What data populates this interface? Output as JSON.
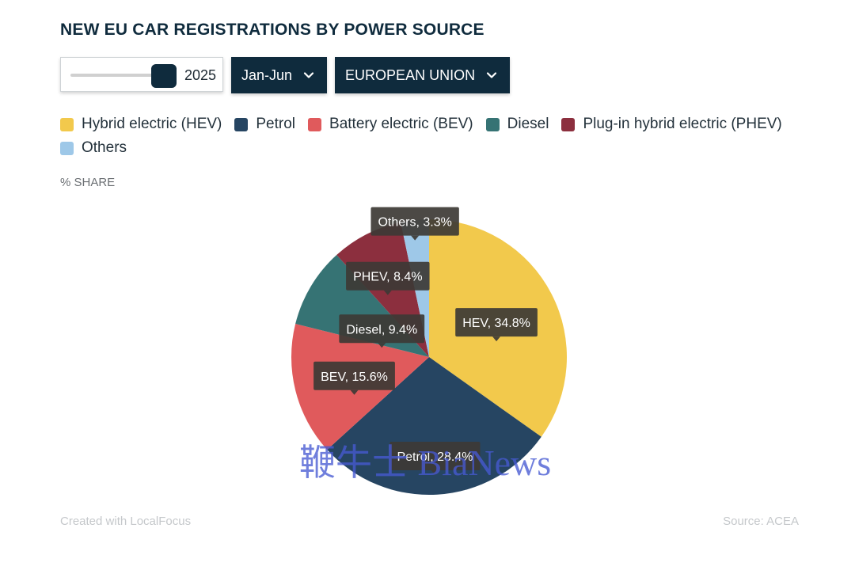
{
  "title": "NEW EU CAR REGISTRATIONS BY POWER SOURCE",
  "controls": {
    "year": "2025",
    "year_slider_level": 1.0,
    "period": "Jan-Jun",
    "region": "EUROPEAN UNION",
    "handle_color": "#0f2b3d",
    "dropdown_color": "#0f2b3d"
  },
  "share_label": "% SHARE",
  "chart_data": {
    "type": "pie",
    "title": "NEW EU CAR REGISTRATIONS BY POWER SOURCE",
    "unit": "% SHARE",
    "legend_position": "top",
    "start_angle_deg": 0,
    "direction": "clockwise",
    "series": [
      {
        "name": "Hybrid electric (HEV)",
        "short": "HEV",
        "value": 34.8,
        "label": "HEV, 34.8%",
        "color": "#f2c94c"
      },
      {
        "name": "Petrol",
        "short": "Petrol",
        "value": 28.4,
        "label": "Petrol, 28.4%",
        "color": "#264562"
      },
      {
        "name": "Battery electric (BEV)",
        "short": "BEV",
        "value": 15.6,
        "label": "BEV, 15.6%",
        "color": "#e05a5c"
      },
      {
        "name": "Diesel",
        "short": "Diesel",
        "value": 9.4,
        "label": "Diesel, 9.4%",
        "color": "#367374"
      },
      {
        "name": "Plug-in hybrid electric (PHEV)",
        "short": "PHEV",
        "value": 8.4,
        "label": "PHEV, 8.4%",
        "color": "#8c2f3e"
      },
      {
        "name": "Others",
        "short": "Others",
        "value": 3.3,
        "label": "Others, 3.3%",
        "color": "#9ec8e8"
      }
    ]
  },
  "watermark": "鞭牛士 BiaNews",
  "footer": {
    "credit": "Created with LocalFocus",
    "source": "Source:  ACEA"
  }
}
